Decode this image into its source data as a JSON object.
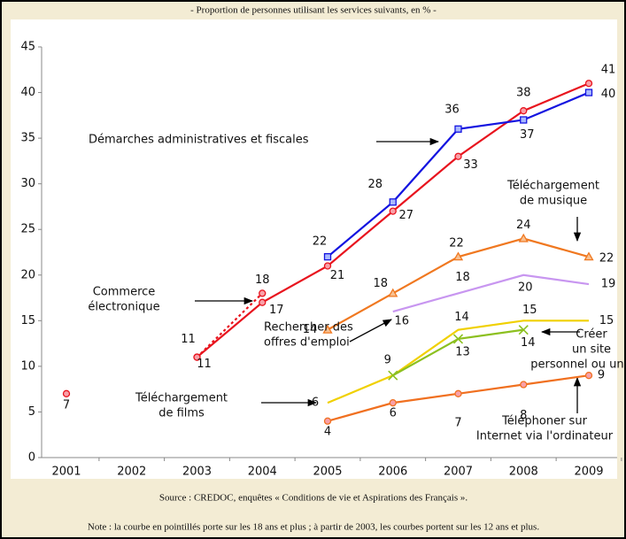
{
  "chart_data": {
    "type": "line",
    "title": "- Proportion de personnes utilisant les services suivants, en % -",
    "source": "Source : CREDOC, enquêtes « Conditions de vie et Aspirations des Français ».",
    "note": "Note : la courbe en pointillés porte sur les 18 ans et plus ; à partir de 2003, les courbes portent sur les 12 ans et plus.",
    "categories": [
      "2001",
      "2002",
      "2003",
      "2004",
      "2005",
      "2006",
      "2007",
      "2008",
      "2009"
    ],
    "ylim": [
      0,
      45
    ],
    "yticks": [
      0,
      5,
      10,
      15,
      20,
      25,
      30,
      35,
      40,
      45
    ],
    "series": [
      {
        "color": "#e8141e",
        "marker": "circle",
        "dashed": true,
        "values": [
          7,
          null,
          11,
          18,
          null,
          null,
          null,
          null,
          null
        ]
      },
      {
        "label": [
          "Commerce",
          "électronique"
        ],
        "color": "#e8141e",
        "marker": "circle",
        "values": [
          null,
          null,
          11,
          17,
          21,
          27,
          33,
          38,
          41
        ]
      },
      {
        "label": [
          "Démarches administratives et fiscales"
        ],
        "color": "#1414e0",
        "marker": "square",
        "values": [
          null,
          null,
          null,
          null,
          22,
          28,
          36,
          37,
          40
        ]
      },
      {
        "label": [
          "Téléchargement",
          "de musique"
        ],
        "color": "#f07820",
        "marker": "triangle",
        "values": [
          null,
          null,
          null,
          null,
          14,
          18,
          22,
          24,
          22
        ]
      },
      {
        "label": [
          "Rechercher des",
          "offres d'emploi"
        ],
        "color": "#c896f0",
        "marker": "none",
        "values": [
          null,
          null,
          null,
          null,
          null,
          16,
          18,
          20,
          19
        ]
      },
      {
        "label": [
          "Téléchargement",
          "de films"
        ],
        "color": "#f0d000",
        "marker": "none",
        "values": [
          null,
          null,
          null,
          null,
          6,
          9,
          14,
          15,
          15
        ]
      },
      {
        "label": [
          "Créer",
          "un site",
          "personnel ou un blog"
        ],
        "color": "#8cc020",
        "marker": "cross",
        "values": [
          null,
          null,
          null,
          null,
          null,
          9,
          13,
          14,
          null
        ]
      },
      {
        "label": [
          "Téléphoner sur",
          "Internet via l'ordinateur"
        ],
        "color": "#f07020",
        "marker": "circle",
        "values": [
          null,
          null,
          null,
          null,
          4,
          6,
          7,
          8,
          9
        ]
      }
    ]
  }
}
